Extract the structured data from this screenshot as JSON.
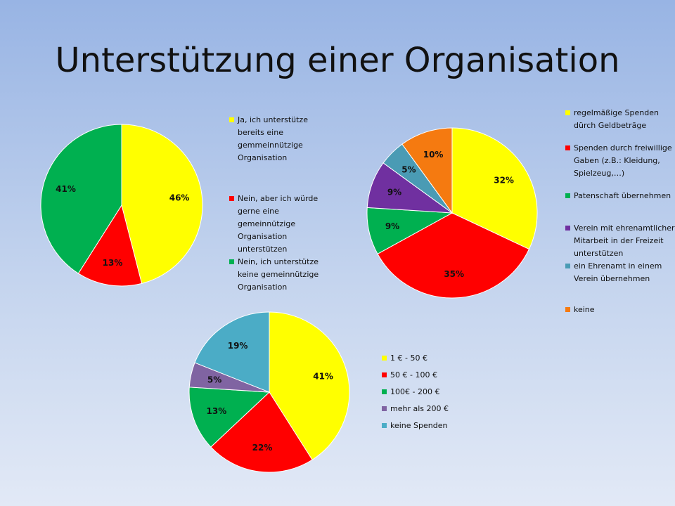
{
  "title": "Unterstützung einer Organisation",
  "chart_data": [
    {
      "type": "pie",
      "title": "",
      "slices": [
        {
          "label": "Ja, ich unterstütze bereits eine gemmeinnützige Organisation",
          "value": 46,
          "display": "46%",
          "color": "#ffff00"
        },
        {
          "label": "Nein, aber ich würde gerne eine gemeinnützige Organisation unterstützen",
          "value": 13,
          "display": "13%",
          "color": "#ff0000"
        },
        {
          "label": "Nein, ich unterstütze keine gemeinnützige Organisation",
          "value": 41,
          "display": "41%",
          "color": "#00b050"
        }
      ],
      "legend_position": "right"
    },
    {
      "type": "pie",
      "title": "",
      "slices": [
        {
          "label": "regelmäßige Spenden dürch Geldbeträge",
          "value": 32,
          "display": "32%",
          "color": "#ffff00"
        },
        {
          "label": "Spenden durch freiwillige Gaben (z.B.: Kleidung, Spielzeug,…)",
          "value": 35,
          "display": "35%",
          "color": "#ff0000"
        },
        {
          "label": "Patenschaft übernehmen",
          "value": 9,
          "display": "9%",
          "color": "#00b050"
        },
        {
          "label": "Verein mit ehrenamtlicher Mitarbeit in der Freizeit unterstützen",
          "value": 9,
          "display": "9%",
          "color": "#7030a0"
        },
        {
          "label": "ein Ehrenamt in einem Verein übernehmen",
          "value": 5,
          "display": "5%",
          "color": "#4a9bb4"
        },
        {
          "label": "keine",
          "value": 10,
          "display": "10%",
          "color": "#f57a10"
        }
      ],
      "legend_position": "right"
    },
    {
      "type": "pie",
      "title": "",
      "slices": [
        {
          "label": "1 € - 50 €",
          "value": 41,
          "display": "41%",
          "color": "#ffff00"
        },
        {
          "label": "50 € - 100 €",
          "value": 22,
          "display": "22%",
          "color": "#ff0000"
        },
        {
          "label": "100€ - 200 €",
          "value": 13,
          "display": "13%",
          "color": "#00b050"
        },
        {
          "label": "mehr als 200 €",
          "value": 5,
          "display": "5%",
          "color": "#8064a2"
        },
        {
          "label": "keine Spenden",
          "value": 19,
          "display": "19%",
          "color": "#4bacc6"
        }
      ],
      "legend_position": "right"
    }
  ]
}
